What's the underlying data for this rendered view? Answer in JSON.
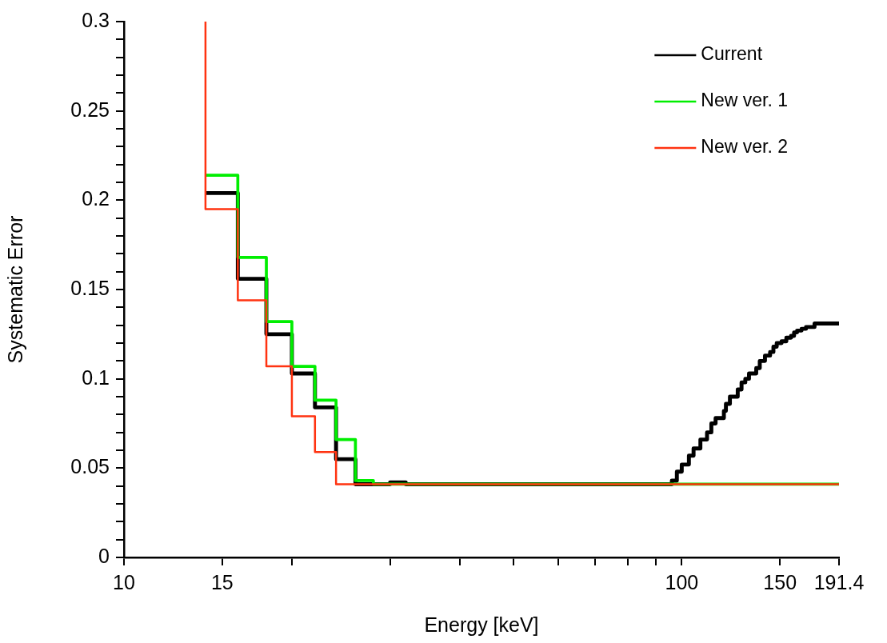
{
  "chart_data": {
    "type": "step",
    "xlabel": "Energy [keV]",
    "ylabel": "Systematic Error",
    "log": "x",
    "xlim": [
      10,
      191.4
    ],
    "ylim": [
      0,
      0.3
    ],
    "xticks": [
      10,
      15,
      {
        "value": 20,
        "label": null
      },
      {
        "value": 30,
        "label": null
      },
      {
        "value": 40,
        "label": null
      },
      {
        "value": 50,
        "label": null
      },
      {
        "value": 60,
        "label": null
      },
      {
        "value": 70,
        "label": null
      },
      {
        "value": 80,
        "label": null
      },
      {
        "value": 90,
        "label": null
      },
      100,
      150,
      191.4
    ],
    "yticks": [
      0,
      {
        "value": 0.01,
        "label": null
      },
      {
        "value": 0.02,
        "label": null
      },
      {
        "value": 0.03,
        "label": null
      },
      {
        "value": 0.04,
        "label": null
      },
      0.05,
      {
        "value": 0.06,
        "label": null
      },
      {
        "value": 0.07,
        "label": null
      },
      {
        "value": 0.08,
        "label": null
      },
      {
        "value": 0.09,
        "label": null
      },
      0.1,
      {
        "value": 0.11,
        "label": null
      },
      {
        "value": 0.12,
        "label": null
      },
      {
        "value": 0.13,
        "label": null
      },
      {
        "value": 0.14,
        "label": null
      },
      0.15,
      {
        "value": 0.16,
        "label": null
      },
      {
        "value": 0.17,
        "label": null
      },
      {
        "value": 0.18,
        "label": null
      },
      {
        "value": 0.19,
        "label": null
      },
      0.2,
      {
        "value": 0.21,
        "label": null
      },
      {
        "value": 0.22,
        "label": null
      },
      {
        "value": 0.23,
        "label": null
      },
      {
        "value": 0.24,
        "label": null
      },
      0.25,
      {
        "value": 0.26,
        "label": null
      },
      {
        "value": 0.27,
        "label": null
      },
      {
        "value": 0.28,
        "label": null
      },
      {
        "value": 0.29,
        "label": null
      },
      0.3
    ],
    "legend": "top right",
    "line_style": "solid",
    "series": [
      {
        "name": "Current",
        "color": "#000000",
        "x": [
          14,
          16,
          18,
          20,
          22,
          24,
          26,
          28,
          30,
          32,
          96,
          98,
          100,
          103,
          105,
          108,
          111,
          113,
          115,
          119,
          120,
          122,
          126,
          128,
          130,
          132,
          136,
          138,
          141,
          144,
          146,
          148,
          151,
          154,
          157,
          159,
          161,
          164,
          167,
          173,
          191.4
        ],
        "values": [
          0.204,
          0.204,
          0.156,
          0.125,
          0.103,
          0.084,
          0.055,
          0.041,
          0.041,
          0.042,
          0.041,
          0.043,
          0.048,
          0.052,
          0.057,
          0.061,
          0.066,
          0.07,
          0.075,
          0.078,
          0.082,
          0.086,
          0.09,
          0.094,
          0.098,
          0.1,
          0.103,
          0.106,
          0.11,
          0.113,
          0.115,
          0.118,
          0.12,
          0.121,
          0.123,
          0.124,
          0.126,
          0.127,
          0.128,
          0.129,
          0.131
        ]
      },
      {
        "name": "New ver. 1",
        "color": "#00ee00",
        "x": [
          14,
          16,
          18,
          20,
          22,
          24,
          26,
          28,
          191.4
        ],
        "values": [
          0.214,
          0.214,
          0.168,
          0.132,
          0.107,
          0.088,
          0.066,
          0.043,
          0.041
        ]
      },
      {
        "name": "New ver. 2",
        "color": "#ff3311",
        "x": [
          14,
          16,
          18,
          20,
          22,
          24,
          26,
          191.4
        ],
        "values": [
          0.3,
          0.195,
          0.144,
          0.107,
          0.079,
          0.059,
          0.041,
          0.041
        ]
      }
    ]
  }
}
